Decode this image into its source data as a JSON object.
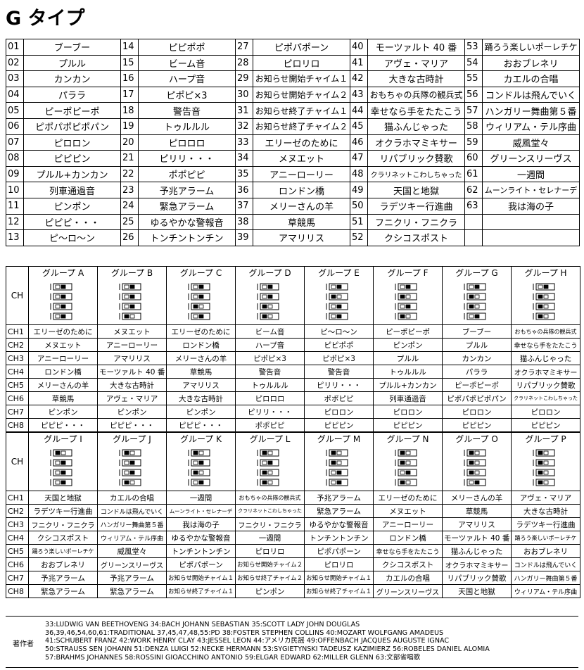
{
  "title": "G タイプ",
  "sound_table": {
    "columns": [
      {
        "numbers": [
          "01",
          "02",
          "03",
          "04",
          "05",
          "06",
          "07",
          "08",
          "09",
          "10",
          "11",
          "12",
          "13"
        ],
        "names": [
          "ブーブー",
          "プルル",
          "カンカン",
          "パララ",
          "ピーポピーポ",
          "ピポパポピポパン",
          "ピロロン",
          "ピピピン",
          "プルル+カンカン",
          "列車通過音",
          "ピンポン",
          "ピピピ・・・",
          "ピ〜ロ〜ン"
        ]
      },
      {
        "numbers": [
          "14",
          "15",
          "16",
          "17",
          "18",
          "19",
          "20",
          "21",
          "22",
          "23",
          "24",
          "25",
          "26"
        ],
        "names": [
          "ピピポポ",
          "ビーム音",
          "ハープ音",
          "ピポピ×3",
          "警告音",
          "トゥルルル",
          "ピロロロ",
          "ピリリ・・・",
          "ポポピピ",
          "予兆アラーム",
          "緊急アラーム",
          "ゆるやかな警報音",
          "トンチントンチン"
        ]
      },
      {
        "numbers": [
          "27",
          "28",
          "29",
          "30",
          "31",
          "32",
          "33",
          "34",
          "35",
          "36",
          "37",
          "38",
          "39"
        ],
        "names": [
          "ピポパポーン",
          "ピロリロ",
          "お知らせ開始チャイム１",
          "お知らせ開始チャイム２",
          "お知らせ終了チャイム１",
          "お知らせ終了チャイム２",
          "エリーゼのために",
          "メヌエット",
          "アニーローリー",
          "ロンドン橋",
          "メリーさんの羊",
          "草競馬",
          "アマリリス"
        ]
      },
      {
        "numbers": [
          "40",
          "41",
          "42",
          "43",
          "44",
          "45",
          "46",
          "47",
          "48",
          "49",
          "50",
          "51",
          "52"
        ],
        "names": [
          "モーツァルト 40 番",
          "アヴェ・マリア",
          "大きな古時計",
          "おもちゃの兵隊の観兵式",
          "幸せなら手をたたこう",
          "猫ふんじゃった",
          "オクラホマミキサー",
          "リパブリック賛歌",
          "クラリネットこわしちゃった",
          "天国と地獄",
          "ラデツキー行進曲",
          "フニクリ・フニクラ",
          "クシコスポスト"
        ]
      },
      {
        "numbers": [
          "53",
          "54",
          "55",
          "56",
          "57",
          "58",
          "59",
          "60",
          "61",
          "62",
          "63"
        ],
        "names": [
          "踊ろう楽しいポーレチケ",
          "おおブレネリ",
          "カエルの合唱",
          "コンドルは飛んでいく",
          "ハンガリー舞曲第５番",
          "ウィリアム・テル序曲",
          "威風堂々",
          "グリーンスリーヴス",
          "一週間",
          "ムーンライト・セレナーデ",
          "我は海の子"
        ]
      }
    ]
  },
  "group_tables": [
    {
      "header_ch": "CH",
      "row_labels": [
        "CH1",
        "CH2",
        "CH3",
        "CH4",
        "CH5",
        "CH6",
        "CH7",
        "CH8"
      ],
      "groups": [
        {
          "name": "グループ A",
          "channels": [
            "エリーゼのために",
            "メヌエット",
            "アニーローリー",
            "ロンドン橋",
            "メリーさんの羊",
            "草競馬",
            "ピンポン",
            "ピピピ・・・"
          ]
        },
        {
          "name": "グループ B",
          "channels": [
            "メヌエット",
            "アニーローリー",
            "アマリリス",
            "モーツァルト 40 番",
            "大きな古時計",
            "アヴェ・マリア",
            "ピンポン",
            "ピピピ・・・"
          ]
        },
        {
          "name": "グループ C",
          "channels": [
            "エリーゼのために",
            "ロンドン橋",
            "メリーさんの羊",
            "草競馬",
            "アマリリス",
            "大きな古時計",
            "ピンポン",
            "ピピピ・・・"
          ]
        },
        {
          "name": "グループ D",
          "channels": [
            "ビーム音",
            "ハープ音",
            "ピポピ×3",
            "警告音",
            "トゥルルル",
            "ピロロロ",
            "ピリリ・・・",
            "ポポピピ"
          ]
        },
        {
          "name": "グループ E",
          "channels": [
            "ピ〜ロ〜ン",
            "ピピポポ",
            "ピポピ×3",
            "警告音",
            "ピリリ・・・",
            "ポポピピ",
            "ピロロン",
            "ピピピン"
          ]
        },
        {
          "name": "グループ F",
          "channels": [
            "ピーポピーポ",
            "ピンポン",
            "プルル",
            "トゥルルル",
            "プルル+カンカン",
            "列車通過音",
            "ピロロン",
            "ピピピン"
          ]
        },
        {
          "name": "グループ G",
          "channels": [
            "ブーブー",
            "プルル",
            "カンカン",
            "パララ",
            "ピーポピーポ",
            "ピポパポピポパン",
            "ピロロン",
            "ピピピン"
          ]
        },
        {
          "name": "グループ H",
          "channels": [
            "おもちゃの兵隊の観兵式",
            "幸せなら手をたたこう",
            "猫ふんじゃった",
            "オクラホマミキサー",
            "リパブリック賛歌",
            "クラリネットこわしちゃった",
            "ピロロン",
            "ピピピン"
          ]
        }
      ]
    },
    {
      "header_ch": "CH",
      "row_labels": [
        "CH1",
        "CH2",
        "CH3",
        "CH4",
        "CH5",
        "CH6",
        "CH7",
        "CH8"
      ],
      "groups": [
        {
          "name": "グループ I",
          "channels": [
            "天国と地獄",
            "ラデツキー行進曲",
            "フニクリ・フニクラ",
            "クシコスポスト",
            "踊ろう楽しいポーレチケ",
            "おおブレネリ",
            "予兆アラーム",
            "緊急アラーム"
          ]
        },
        {
          "name": "グループ J",
          "channels": [
            "カエルの合唱",
            "コンドルは飛んでいく",
            "ハンガリー舞曲第５番",
            "ウィリアム・テル序曲",
            "威風堂々",
            "グリーンスリーヴス",
            "予兆アラーム",
            "緊急アラーム"
          ]
        },
        {
          "name": "グループ K",
          "channels": [
            "一週間",
            "ムーンライト・セレナーデ",
            "我は海の子",
            "ゆるやかな警報音",
            "トンチントンチン",
            "ピポパポーン",
            "お知らせ開始チャイム１",
            "お知らせ終了チャイム１"
          ]
        },
        {
          "name": "グループ L",
          "channels": [
            "おもちゃの兵隊の観兵式",
            "クラリネットこわしちゃった",
            "フニクリ・フニクラ",
            "一週間",
            "ピロリロ",
            "お知らせ開始チャイム２",
            "お知らせ終了チャイム２",
            "ピンポン"
          ]
        },
        {
          "name": "グループ M",
          "channels": [
            "予兆アラーム",
            "緊急アラーム",
            "ゆるやかな警報音",
            "トンチントンチン",
            "ピポパポーン",
            "ピロリロ",
            "お知らせ開始チャイム１",
            "お知らせ終了チャイム１"
          ]
        },
        {
          "name": "グループ N",
          "channels": [
            "エリーゼのために",
            "メヌエット",
            "アニーローリー",
            "ロンドン橋",
            "幸せなら手をたたこう",
            "クシコスポスト",
            "カエルの合唱",
            "グリーンスリーヴス"
          ]
        },
        {
          "name": "グループ O",
          "channels": [
            "メリーさんの羊",
            "草競馬",
            "アマリリス",
            "モーツァルト 40 番",
            "猫ふんじゃった",
            "オクラホマミキサー",
            "リパブリック賛歌",
            "天国と地獄"
          ]
        },
        {
          "name": "グループ P",
          "channels": [
            "アヴェ・マリア",
            "大きな古時計",
            "ラデツキー行進曲",
            "踊ろう楽しいポーレチケ",
            "おおブレネリ",
            "コンドルは飛んでいく",
            "ハンガリー舞曲第５番",
            "ウィリアム・テル序曲"
          ]
        }
      ]
    }
  ],
  "composers": {
    "label": "著作者",
    "lines": [
      "33:LUDWIG VAN BEETHOVENG 34:BACH JOHANN SEBASTIAN 35:SCOTT LADY JOHN DOUGLAS",
      "36,39,46,54,60,61:TRADITIONAL 37,45,47,48,55:PD 38:FOSTER STEPHEN COLLINS 40:MOZART WOLFGANG AMADEUS",
      "41:SCHUBERT FRANZ 42:WORK HENRY CLAY 43:JESSEL LEON 44:アメリカ民謡 49:OFFENBACH JACQUES AUGUSTE IGNAC",
      "50:STRAUSS SEN JOHANN 51:DENZA LUIGI 52:NECKE HERMANN 53:SYGIETYNSKI TADEUSZ KAZIMIERZ 56:ROBELES DANIEL ALOMIA",
      "57:BRAHMS JOHANNES 58:ROSSINI GIOACCHINO ANTONIO 59:ELGAR EDWARD 62:MILLER GLENN 63:文部省唱歌"
    ]
  }
}
